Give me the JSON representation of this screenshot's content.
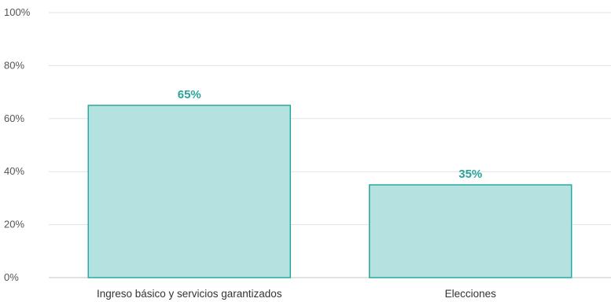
{
  "chart_data": {
    "type": "bar",
    "categories": [
      "Ingreso básico y servicios garantizados",
      "Elecciones"
    ],
    "values": [
      65,
      35
    ],
    "data_labels": [
      "65%",
      "35%"
    ],
    "ylim": [
      0,
      100
    ],
    "yticks": [
      0,
      20,
      40,
      60,
      80,
      100
    ],
    "ytick_labels": [
      "0%",
      "20%",
      "40%",
      "60%",
      "80%",
      "100%"
    ],
    "grid": true,
    "legend": "none",
    "colors": {
      "bar_fill": "#b3e2e0",
      "bar_stroke": "#2aa9a0",
      "data_label": "#2aa39a",
      "grid": "#e3e3e3",
      "baseline": "#c4c4c4"
    }
  }
}
